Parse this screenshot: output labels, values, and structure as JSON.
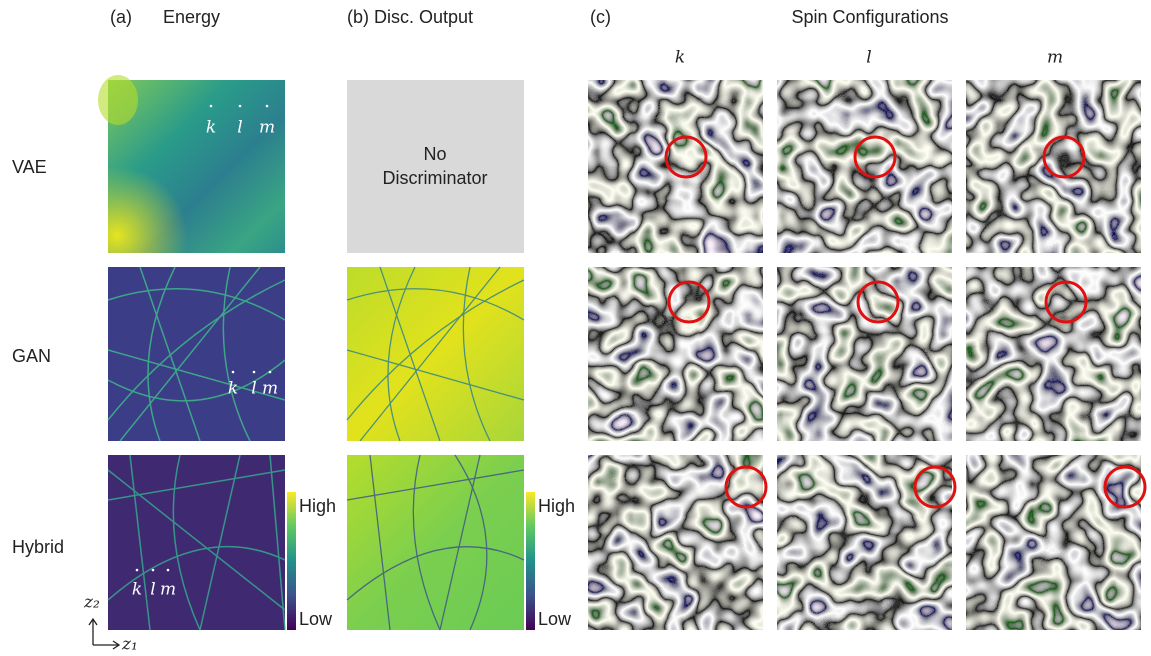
{
  "headers": {
    "a_label": "(a)",
    "a_title": "Energy",
    "b_title": "(b) Disc. Output",
    "c_label": "(c)",
    "c_title": "Spin Configurations"
  },
  "columns": [
    "k",
    "l",
    "m"
  ],
  "rows": [
    {
      "label": "VAE",
      "points": [
        "k",
        "l",
        "m"
      ]
    },
    {
      "label": "GAN",
      "points": [
        "k",
        "l",
        "m"
      ]
    },
    {
      "label": "Hybrid",
      "points": [
        "k",
        "l",
        "m"
      ]
    }
  ],
  "no_discriminator": [
    "No",
    "Discriminator"
  ],
  "colorbars": [
    {
      "high": "High",
      "low": "Low"
    },
    {
      "high": "High",
      "low": "Low"
    }
  ],
  "axes": {
    "y": "z₂",
    "x": "z₁"
  }
}
